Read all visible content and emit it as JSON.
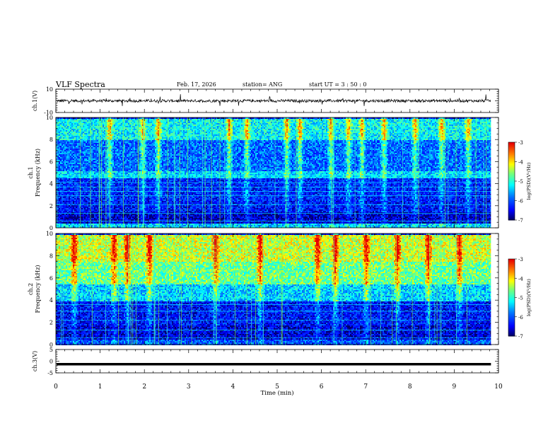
{
  "header": {
    "title": "VLF Spectra",
    "date": "Feb. 17, 2026",
    "station": "station= ANG",
    "start": "start  UT =   3  : 50 : 0"
  },
  "colors": {
    "cmap": [
      "#000080",
      "#0000ff",
      "#0080ff",
      "#00ffff",
      "#80ff80",
      "#ffff00",
      "#ff8000",
      "#ff0000",
      "#ffffff"
    ]
  },
  "chart_data": [
    {
      "type": "line",
      "name": "ch1-waveform",
      "ylabel": "ch.1(V)",
      "ylim": [
        -10,
        10
      ],
      "yticks": [
        "10",
        "-10"
      ],
      "mean": 0,
      "noise": "dense bursty waveform around 0 V, spikes to roughly ±6 V"
    },
    {
      "type": "heatmap",
      "name": "ch1-spectrogram",
      "ylabel": [
        "ch.1",
        "Frequency  (kHz)"
      ],
      "ylim": [
        0,
        10
      ],
      "yticks": [
        "0",
        "2",
        "4",
        "6",
        "8",
        "10"
      ],
      "colorbar": {
        "label": "log(PSD)(V²/Hz)",
        "range": [
          -7,
          -3
        ],
        "ticks": [
          "-3",
          "-4",
          "-5",
          "-6",
          "-7"
        ]
      },
      "bands": [
        {
          "from": 0,
          "to": 0.5,
          "level": -5.4
        },
        {
          "from": 0.5,
          "to": 1.5,
          "level": -6.7
        },
        {
          "from": 1.5,
          "to": 2.5,
          "level": -6.4
        },
        {
          "from": 2.5,
          "to": 4.6,
          "level": -6.3
        },
        {
          "from": 4.6,
          "to": 5.2,
          "level": -5.4
        },
        {
          "from": 5.2,
          "to": 8.0,
          "level": -5.9
        },
        {
          "from": 8.0,
          "to": 10.0,
          "level": -5.2
        }
      ],
      "lines_khz": [
        0.6,
        1.3,
        2.1,
        2.9,
        3.3,
        3.7,
        4.1,
        4.6,
        4.75
      ],
      "burst_times_min": [
        1.2,
        1.95,
        2.3,
        3.9,
        4.3,
        5.2,
        5.5,
        6.2,
        6.6,
        6.9,
        7.4,
        8.1,
        8.7,
        9.3
      ]
    },
    {
      "type": "heatmap",
      "name": "ch2-spectrogram",
      "ylabel": [
        "ch.2",
        "Frequency  (kHz)"
      ],
      "ylim": [
        0,
        10
      ],
      "yticks": [
        "0",
        "2",
        "4",
        "6",
        "8",
        "10"
      ],
      "colorbar": {
        "label": "log(PSD)(V²/Hz)",
        "range": [
          -7,
          -3
        ],
        "ticks": [
          "-3",
          "-4",
          "-5",
          "-6",
          "-7"
        ]
      },
      "bands": [
        {
          "from": 0,
          "to": 0.5,
          "level": -6.0
        },
        {
          "from": 0.5,
          "to": 1.8,
          "level": -6.6
        },
        {
          "from": 1.8,
          "to": 4.0,
          "level": -6.4
        },
        {
          "from": 4.0,
          "to": 5.5,
          "level": -5.4
        },
        {
          "from": 5.5,
          "to": 7.5,
          "level": -4.7
        },
        {
          "from": 7.5,
          "to": 10.0,
          "level": -4.3
        }
      ],
      "lines_khz": [
        0.6,
        1.3,
        2.2,
        3.0,
        3.6,
        4.2
      ],
      "burst_times_min": [
        0.4,
        1.3,
        1.6,
        2.1,
        3.6,
        4.6,
        5.9,
        6.3,
        7.0,
        7.7,
        8.4,
        9.1
      ]
    },
    {
      "type": "line",
      "name": "ch3-waveform",
      "ylabel": "ch.3(V)",
      "ylim": [
        -5,
        5
      ],
      "yticks": [
        "5",
        "0",
        "-5"
      ],
      "value": -1.3
    }
  ],
  "xaxis": {
    "label": "Time  (min)",
    "range": [
      0,
      10
    ],
    "data_end": 9.83,
    "ticks": [
      "0",
      "1",
      "2",
      "3",
      "4",
      "5",
      "6",
      "7",
      "8",
      "9",
      "10"
    ]
  }
}
